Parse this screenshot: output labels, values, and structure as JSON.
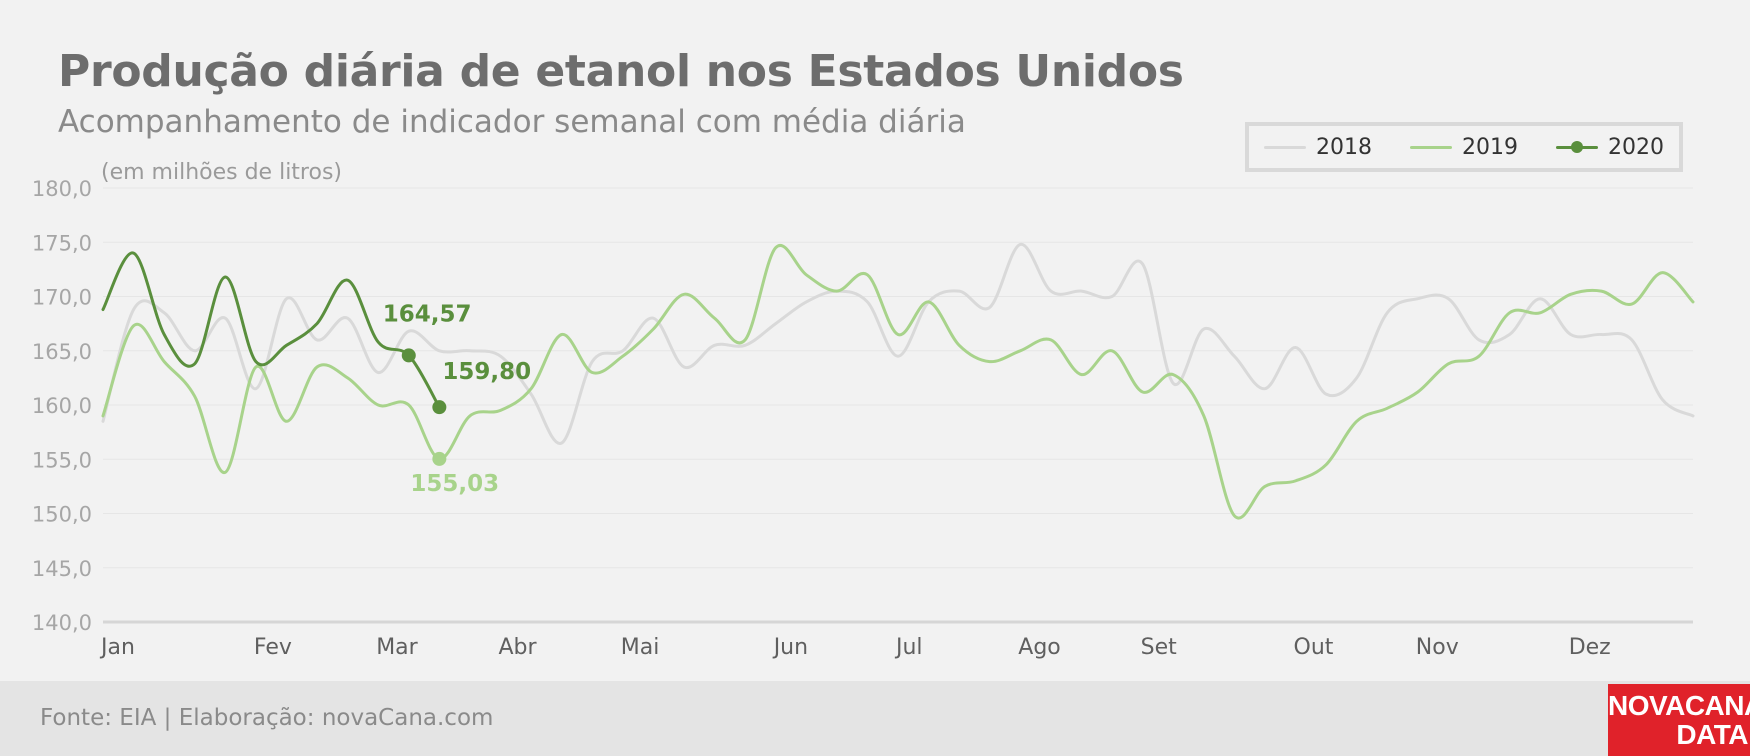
{
  "title": "Produção diária de etanol nos Estados Unidos",
  "subtitle": "Acompanhamento de indicador semanal com média diária",
  "unit_note": "(em milhões de litros)",
  "source": "Fonte: EIA | Elaboração: novaCana.com",
  "logo": {
    "line1": "NOVACANA",
    "line2": "DATA"
  },
  "colors": {
    "2018": "#d9d9d9",
    "2019": "#a8d38b",
    "2020": "#5a8f3d",
    "brand": "#e0222a"
  },
  "chart_data": {
    "type": "line",
    "title": "Produção diária de etanol nos Estados Unidos",
    "subtitle": "Acompanhamento de indicador semanal com média diária",
    "ylabel": "(em milhões de litros)",
    "ylim": [
      140,
      180
    ],
    "yticks": [
      180,
      175,
      170,
      165,
      160,
      155,
      150,
      145,
      140
    ],
    "ytick_labels": [
      "180,0",
      "175,0",
      "170,0",
      "165,0",
      "160,0",
      "155,0",
      "150,0",
      "145,0",
      "140,0"
    ],
    "x_unit": "week",
    "xlim": [
      1,
      53
    ],
    "months": [
      {
        "label": "Jan",
        "week": 1
      },
      {
        "label": "Fev",
        "week": 6
      },
      {
        "label": "Mar",
        "week": 10
      },
      {
        "label": "Abr",
        "week": 14
      },
      {
        "label": "Mai",
        "week": 18
      },
      {
        "label": "Jun",
        "week": 23
      },
      {
        "label": "Jul",
        "week": 27
      },
      {
        "label": "Ago",
        "week": 31
      },
      {
        "label": "Set",
        "week": 35
      },
      {
        "label": "Out",
        "week": 40
      },
      {
        "label": "Nov",
        "week": 44
      },
      {
        "label": "Dez",
        "week": 49
      }
    ],
    "grid": true,
    "legend_position": "top-right",
    "series": [
      {
        "name": "2018",
        "x": [
          1,
          2,
          3,
          4,
          5,
          6,
          7,
          8,
          9,
          10,
          11,
          12,
          13,
          14,
          15,
          16,
          17,
          18,
          19,
          20,
          21,
          22,
          23,
          24,
          25,
          26,
          27,
          28,
          29,
          30,
          31,
          32,
          33,
          34,
          35,
          36,
          37,
          38,
          39,
          40,
          41,
          42,
          43,
          44,
          45,
          46,
          47,
          48,
          49,
          50,
          51,
          52,
          53
        ],
        "values": [
          158.5,
          168.8,
          168.5,
          165.0,
          168.0,
          161.5,
          169.8,
          166.0,
          168.0,
          163.0,
          166.8,
          165.0,
          165.0,
          164.5,
          161.0,
          156.5,
          164.0,
          165.0,
          168.0,
          163.5,
          165.5,
          165.5,
          167.5,
          169.5,
          170.5,
          169.5,
          164.5,
          169.5,
          170.5,
          169.0,
          174.8,
          170.5,
          170.5,
          170.0,
          173.0,
          162.0,
          167.0,
          164.5,
          161.5,
          165.3,
          161.0,
          162.5,
          168.5,
          169.8,
          169.8,
          166.0,
          166.5,
          169.8,
          166.5,
          166.5,
          166.0,
          160.5,
          159.0
        ]
      },
      {
        "name": "2019",
        "x": [
          1,
          2,
          3,
          4,
          5,
          6,
          7,
          8,
          9,
          10,
          11,
          12,
          13,
          14,
          15,
          16,
          17,
          18,
          19,
          20,
          21,
          22,
          23,
          24,
          25,
          26,
          27,
          28,
          29,
          30,
          31,
          32,
          33,
          34,
          35,
          36,
          37,
          38,
          39,
          40,
          41,
          42,
          43,
          44,
          45,
          46,
          47,
          48,
          49,
          50,
          51,
          52,
          53
        ],
        "values": [
          159.0,
          167.3,
          164.0,
          160.8,
          153.8,
          163.5,
          158.5,
          163.5,
          162.5,
          160.0,
          160.0,
          155.03,
          159.0,
          159.5,
          161.5,
          166.5,
          163.0,
          164.5,
          167.0,
          170.2,
          168.0,
          166.0,
          174.5,
          172.0,
          170.5,
          172.0,
          166.5,
          169.5,
          165.5,
          164.0,
          165.0,
          166.0,
          162.8,
          165.0,
          161.2,
          162.8,
          159.0,
          149.8,
          152.5,
          153.0,
          154.5,
          158.5,
          159.7,
          161.2,
          163.8,
          164.5,
          168.5,
          168.5,
          170.2,
          170.5,
          169.3,
          172.2,
          169.5
        ]
      },
      {
        "name": "2020",
        "x": [
          1,
          2,
          3,
          4,
          5,
          6,
          7,
          8,
          9,
          10,
          11,
          12
        ],
        "values": [
          168.8,
          174.0,
          166.5,
          163.8,
          171.8,
          164.0,
          165.5,
          167.5,
          171.5,
          165.8,
          164.57,
          159.8
        ]
      }
    ],
    "annotations": [
      {
        "series": "2020",
        "week": 11,
        "value": 164.57,
        "label": "164,57"
      },
      {
        "series": "2020",
        "week": 12,
        "value": 159.8,
        "label": "159,80"
      },
      {
        "series": "2019",
        "week": 12,
        "value": 155.03,
        "label": "155,03"
      }
    ]
  }
}
